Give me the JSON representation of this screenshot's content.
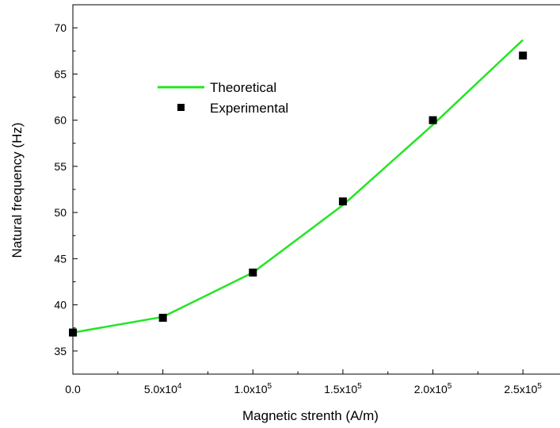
{
  "chart_data": {
    "type": "line",
    "xlabel": "Magnetic strenth (A/m)",
    "ylabel": "Natural frequency (Hz)",
    "xlim": [
      0,
      275000
    ],
    "ylim": [
      32.5,
      72.5
    ],
    "x_ticks": [
      {
        "value": 0,
        "mantissa": "0.0",
        "exp": ""
      },
      {
        "value": 50000,
        "mantissa": "5.0x10",
        "exp": "4"
      },
      {
        "value": 100000,
        "mantissa": "1.0x10",
        "exp": "5"
      },
      {
        "value": 150000,
        "mantissa": "1.5x10",
        "exp": "5"
      },
      {
        "value": 200000,
        "mantissa": "2.0x10",
        "exp": "5"
      },
      {
        "value": 250000,
        "mantissa": "2.5x10",
        "exp": "5"
      }
    ],
    "y_ticks": [
      35,
      40,
      45,
      50,
      55,
      60,
      65,
      70
    ],
    "legend_position": "upper-left",
    "series": [
      {
        "name": "Theoretical",
        "style": "line",
        "color": "#22e622",
        "x": [
          0,
          50000,
          100000,
          150000,
          200000,
          250000
        ],
        "y": [
          37.0,
          38.7,
          43.5,
          50.8,
          59.5,
          68.7
        ]
      },
      {
        "name": "Experimental",
        "style": "square-marker",
        "color": "#000000",
        "x": [
          0,
          50000,
          100000,
          150000,
          200000,
          250000
        ],
        "y": [
          37.0,
          38.6,
          43.5,
          51.2,
          60.0,
          67.0
        ]
      }
    ]
  }
}
